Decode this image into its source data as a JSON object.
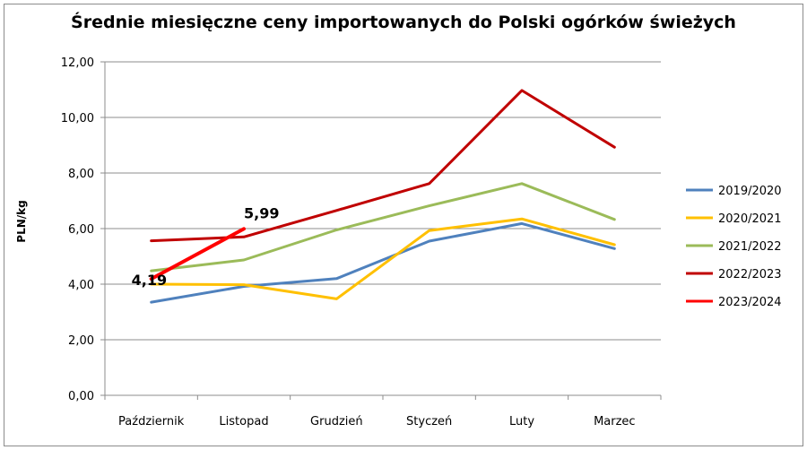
{
  "chart_data": {
    "type": "line",
    "title": "Średnie miesięczne ceny importowanych do Polski ogórków świeżych",
    "xlabel": "",
    "ylabel": "PLN/kg",
    "ylim": [
      0,
      12
    ],
    "ytick_labels": [
      "0,00",
      "2,00",
      "4,00",
      "6,00",
      "8,00",
      "10,00",
      "12,00"
    ],
    "categories": [
      "Październik",
      "Listopad",
      "Grudzień",
      "Styczeń",
      "Luty",
      "Marzec"
    ],
    "grid": true,
    "legend_position": "right",
    "series": [
      {
        "name": "2019/2020",
        "color": "#4f81bd",
        "values": [
          3.35,
          3.92,
          4.2,
          5.55,
          6.18,
          5.28
        ]
      },
      {
        "name": "2020/2021",
        "color": "#ffc000",
        "values": [
          4.0,
          3.98,
          3.47,
          5.93,
          6.35,
          5.42
        ]
      },
      {
        "name": "2021/2022",
        "color": "#9bbb59",
        "values": [
          4.48,
          4.87,
          5.95,
          6.82,
          7.62,
          6.33
        ]
      },
      {
        "name": "2022/2023",
        "color": "#c00000",
        "values": [
          5.56,
          5.7,
          6.65,
          7.62,
          10.97,
          8.93
        ]
      },
      {
        "name": "2023/2024",
        "color": "#ff0000",
        "values": [
          4.19,
          5.99,
          null,
          null,
          null,
          null
        ]
      }
    ],
    "annotations": [
      {
        "series": "2023/2024",
        "category": "Październik",
        "text": "4,19"
      },
      {
        "series": "2023/2024",
        "category": "Listopad",
        "text": "5,99"
      }
    ]
  }
}
